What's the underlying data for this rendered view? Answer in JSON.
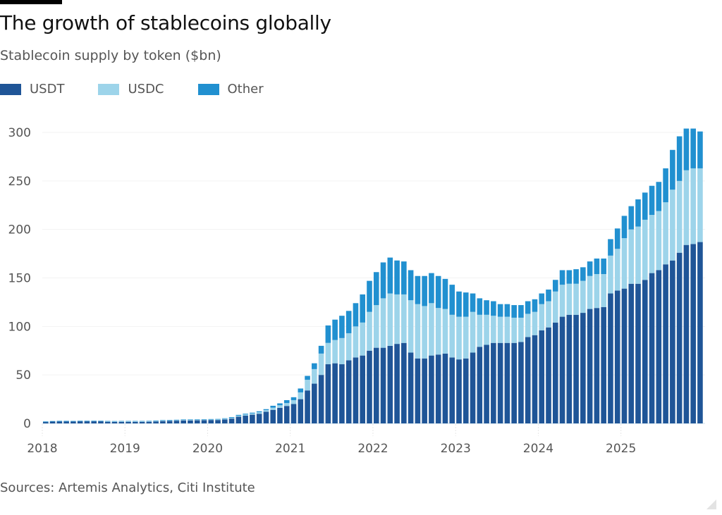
{
  "title": "The growth of stablecoins globally",
  "subtitle": "Stablecoin supply by token ($bn)",
  "source": "Sources: Artemis Analytics, Citi Institute",
  "colors": {
    "USDT": "#1f5597",
    "USDC": "#9dd4ea",
    "Other": "#2190d0"
  },
  "chart_data": {
    "type": "bar",
    "stacked": true,
    "title": "The growth of stablecoins globally",
    "subtitle": "Stablecoin supply by token ($bn)",
    "xlabel": "",
    "ylabel": "",
    "ylim": [
      0,
      300
    ],
    "yticks": [
      0,
      50,
      100,
      150,
      200,
      250,
      300
    ],
    "xtick_labels": [
      "2018",
      "2019",
      "2020",
      "2021",
      "2022",
      "2023",
      "2024",
      "2025"
    ],
    "grid": true,
    "legend": {
      "placement": "top-left",
      "entries": [
        "USDT",
        "USDC",
        "Other"
      ]
    },
    "start": "2018-01",
    "frequency": "monthly",
    "categories": [
      "2018-01",
      "2018-02",
      "2018-03",
      "2018-04",
      "2018-05",
      "2018-06",
      "2018-07",
      "2018-08",
      "2018-09",
      "2018-10",
      "2018-11",
      "2018-12",
      "2019-01",
      "2019-02",
      "2019-03",
      "2019-04",
      "2019-05",
      "2019-06",
      "2019-07",
      "2019-08",
      "2019-09",
      "2019-10",
      "2019-11",
      "2019-12",
      "2020-01",
      "2020-02",
      "2020-03",
      "2020-04",
      "2020-05",
      "2020-06",
      "2020-07",
      "2020-08",
      "2020-09",
      "2020-10",
      "2020-11",
      "2020-12",
      "2021-01",
      "2021-02",
      "2021-03",
      "2021-04",
      "2021-05",
      "2021-06",
      "2021-07",
      "2021-08",
      "2021-09",
      "2021-10",
      "2021-11",
      "2021-12",
      "2022-01",
      "2022-02",
      "2022-03",
      "2022-04",
      "2022-05",
      "2022-06",
      "2022-07",
      "2022-08",
      "2022-09",
      "2022-10",
      "2022-11",
      "2022-12",
      "2023-01",
      "2023-02",
      "2023-03",
      "2023-04",
      "2023-05",
      "2023-06",
      "2023-07",
      "2023-08",
      "2023-09",
      "2023-10",
      "2023-11",
      "2023-12",
      "2024-01",
      "2024-02",
      "2024-03",
      "2024-04",
      "2024-05",
      "2024-06",
      "2024-07",
      "2024-08",
      "2024-09",
      "2024-10",
      "2024-11",
      "2024-12",
      "2025-01",
      "2025-02",
      "2025-03",
      "2025-04",
      "2025-05",
      "2025-06",
      "2025-07",
      "2025-08",
      "2025-09",
      "2025-10",
      "2025-11",
      "2025-12"
    ],
    "series": [
      {
        "name": "USDT",
        "values": [
          1.4,
          1.8,
          1.9,
          1.9,
          1.9,
          2.1,
          2.1,
          2.1,
          2.1,
          1.8,
          1.6,
          1.6,
          1.6,
          1.6,
          1.6,
          1.7,
          2.0,
          2.4,
          2.6,
          2.8,
          3.1,
          3.1,
          3.2,
          3.3,
          3.5,
          3.5,
          4.0,
          5.0,
          7.0,
          8.0,
          9.0,
          10.0,
          12.0,
          14.0,
          16.0,
          18.0,
          20.0,
          25.0,
          34.0,
          41.0,
          50.0,
          61.0,
          62.0,
          61.0,
          65.0,
          68.0,
          70.0,
          75.0,
          78.0,
          78.0,
          80.0,
          82.0,
          83.0,
          73.0,
          67.0,
          67.0,
          70.0,
          71.0,
          72.0,
          68.0,
          66.0,
          67.0,
          73.0,
          79.0,
          81.0,
          83.0,
          83.0,
          83.0,
          83.0,
          84.0,
          89.0,
          91.0,
          96.0,
          99.0,
          104.0,
          110.0,
          112.0,
          112.0,
          114.0,
          118.0,
          119.0,
          120.0,
          134.0,
          137.0,
          139.0,
          144.0,
          144.0,
          148.0,
          155.0,
          158.0,
          164.0,
          168.0,
          176.0,
          184.0,
          185.0,
          187.0
        ]
      },
      {
        "name": "USDC",
        "values": [
          0,
          0,
          0,
          0,
          0,
          0,
          0,
          0,
          0,
          0.2,
          0.3,
          0.4,
          0.4,
          0.4,
          0.4,
          0.4,
          0.5,
          0.5,
          0.5,
          0.5,
          0.5,
          0.5,
          0.5,
          0.5,
          0.5,
          0.6,
          0.8,
          0.8,
          1.0,
          1.2,
          1.3,
          1.5,
          1.7,
          2.2,
          2.7,
          3.0,
          4.0,
          7.0,
          11.0,
          15.0,
          22.0,
          22.0,
          24.0,
          27.0,
          28.0,
          32.0,
          34.0,
          40.0,
          44.0,
          51.0,
          54.0,
          51.0,
          50.0,
          54.0,
          56.0,
          54.0,
          54.0,
          48.0,
          46.0,
          44.0,
          44.0,
          43.0,
          42.0,
          33.0,
          31.0,
          28.0,
          27.0,
          27.0,
          26.0,
          25.0,
          24.0,
          24.0,
          27.0,
          27.0,
          32.0,
          33.0,
          32.0,
          32.0,
          33.0,
          34.0,
          35.0,
          34.0,
          39.0,
          43.0,
          52.0,
          56.0,
          59.0,
          62.0,
          60.0,
          61.0,
          64.0,
          73.0,
          74.0,
          77.0,
          78.0,
          76.0
        ]
      },
      {
        "name": "Other",
        "values": [
          0.6,
          0.6,
          0.7,
          0.7,
          0.6,
          0.6,
          0.6,
          0.6,
          0.6,
          0.5,
          0.5,
          0.5,
          0.5,
          0.5,
          0.5,
          0.5,
          0.5,
          0.5,
          0.5,
          0.5,
          0.5,
          0.5,
          0.5,
          0.5,
          0.5,
          0.5,
          0.5,
          0.7,
          0.8,
          0.8,
          0.8,
          1.0,
          1.0,
          2.0,
          2.0,
          3.0,
          3.0,
          4.0,
          4.0,
          6.0,
          8.0,
          18.0,
          21.0,
          23.0,
          23.0,
          24.0,
          29.0,
          32.0,
          34.0,
          37.0,
          37.0,
          35.0,
          34.0,
          31.0,
          29.0,
          31.0,
          31.0,
          33.0,
          31.0,
          31.0,
          26.0,
          25.0,
          19.0,
          17.0,
          15.0,
          15.0,
          13.0,
          13.0,
          13.0,
          13.0,
          13.0,
          13.0,
          11.0,
          12.0,
          12.0,
          15.0,
          14.0,
          15.0,
          14.0,
          15.0,
          16.0,
          16.0,
          17.0,
          21.0,
          23.0,
          24.0,
          28.0,
          28.0,
          30.0,
          30.0,
          35.0,
          41.0,
          46.0,
          43.0,
          41.0,
          38.0
        ]
      }
    ]
  }
}
